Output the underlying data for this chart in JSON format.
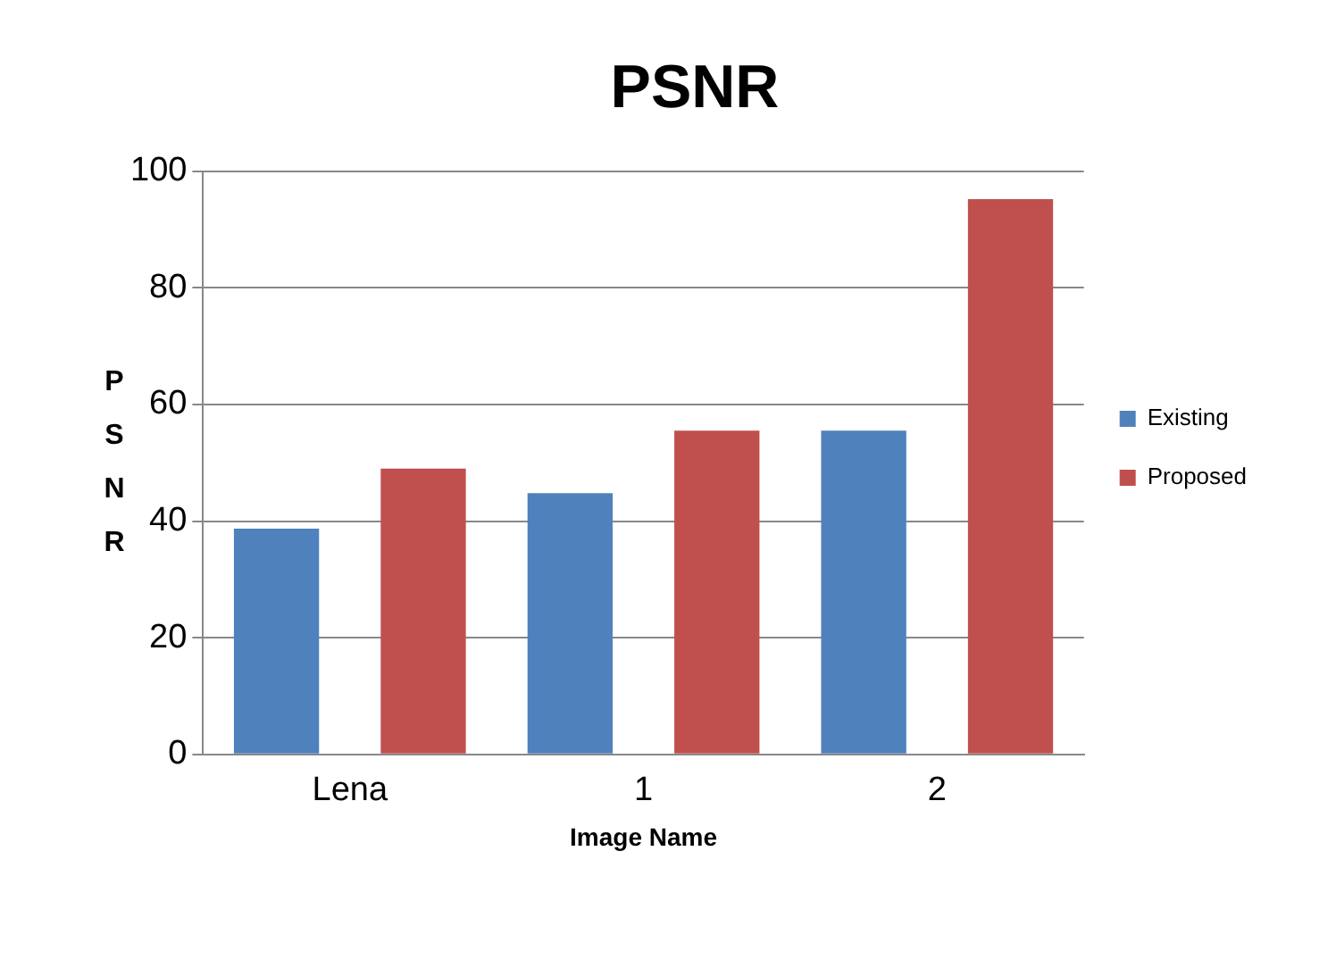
{
  "chart_data": {
    "type": "bar",
    "title": "PSNR",
    "xlabel": "Image Name",
    "ylabel": "PSNR",
    "categories": [
      "Lena",
      "1",
      "2"
    ],
    "series": [
      {
        "name": "Existing",
        "color": "#4f81bd",
        "values": [
          38.7,
          44.8,
          55.5
        ]
      },
      {
        "name": "Proposed",
        "color": "#c0504d",
        "values": [
          49,
          55.5,
          95.2
        ]
      }
    ],
    "ylim": [
      0,
      100
    ],
    "yticks": [
      0,
      20,
      40,
      60,
      80,
      100
    ],
    "grid": "y",
    "legend": "right"
  }
}
